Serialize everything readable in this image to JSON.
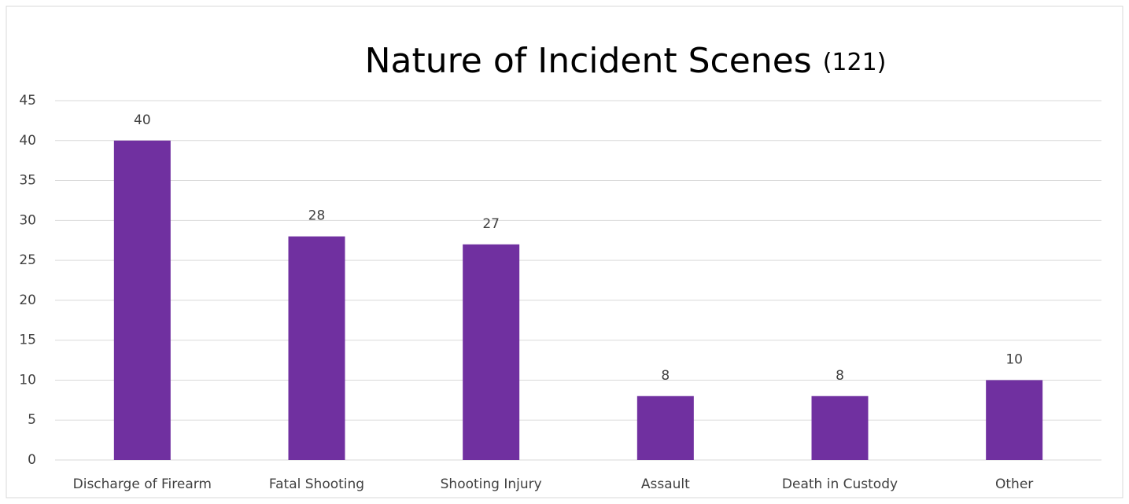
{
  "chart_data": {
    "type": "bar",
    "title": "Nature of Incident Scenes",
    "title_suffix": "(121)",
    "categories": [
      "Discharge of Firearm",
      "Fatal Shooting",
      "Shooting Injury",
      "Assault",
      "Death in Custody",
      "Other"
    ],
    "values": [
      40,
      28,
      27,
      8,
      8,
      10
    ],
    "color": "#7030a0",
    "ylim": [
      0,
      45
    ],
    "yticks": [
      0,
      5,
      10,
      15,
      20,
      25,
      30,
      35,
      40,
      45
    ],
    "grid": true
  }
}
